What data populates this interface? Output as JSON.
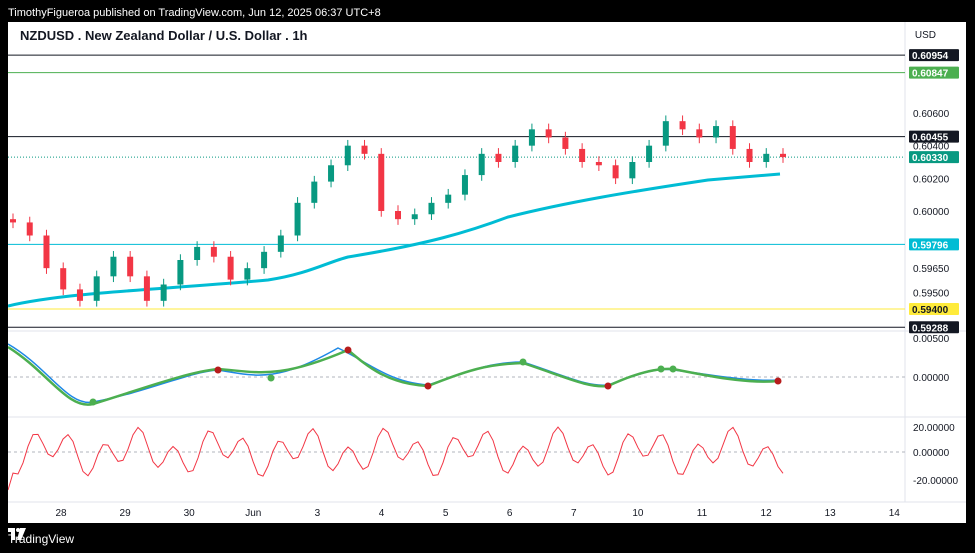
{
  "header": {
    "published": "TimothyFigueroa published on TradingView.com, Jun 12, 2025 06:37 UTC+8"
  },
  "footer": {
    "brand": "TradingView"
  },
  "chart_data": {
    "type": "line",
    "title": "NZDUSD . New Zealand Dollar / U.S. Dollar . 1h",
    "currency": "USD",
    "price_ticks": [
      "0.60600",
      "0.60400",
      "0.60200",
      "0.60000",
      "0.59650",
      "0.59500"
    ],
    "osc_ticks": [
      "0.00500",
      "0.00000"
    ],
    "rsi_ticks": [
      "20.00000",
      "0.00000",
      "-20.00000"
    ],
    "x_ticks": [
      "28",
      "29",
      "30",
      "Jun",
      "3",
      "4",
      "5",
      "6",
      "7",
      "10",
      "11",
      "12",
      "13",
      "14"
    ],
    "levels": [
      {
        "label": "0.60954",
        "color": "#131722"
      },
      {
        "label": "0.60847",
        "color": "#4caf50"
      },
      {
        "label": "0.60455",
        "color": "#131722"
      },
      {
        "label": "0.59796",
        "color": "#00bcd4"
      },
      {
        "label": "0.59400",
        "color": "#ffeb3b"
      },
      {
        "label": "0.59288",
        "color": "#131722"
      }
    ],
    "last_price": {
      "label": "0.60330",
      "color": "#089981"
    },
    "colors": {
      "up": "#089981",
      "down": "#f23645",
      "ma": "#00bcd4",
      "macd_line": "#1e88e5",
      "signal_up": "#4caf50",
      "signal_down": "#b71c1c"
    }
  }
}
